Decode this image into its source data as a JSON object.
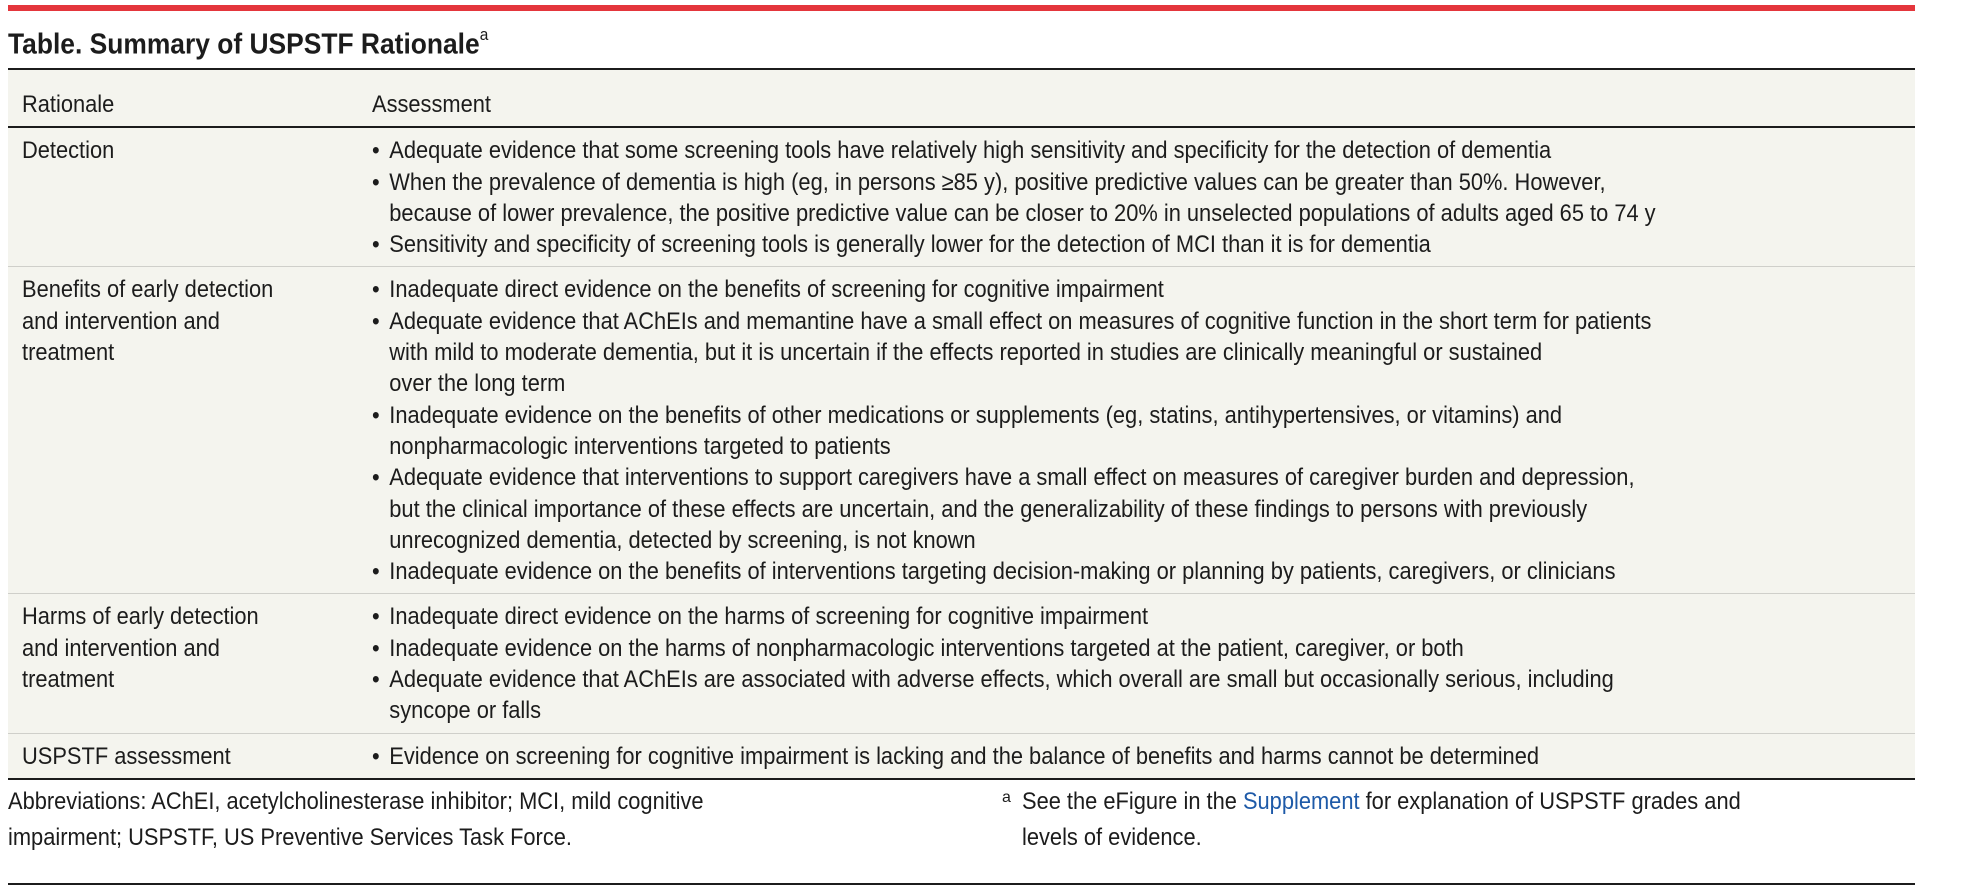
{
  "title": {
    "text": "Table. Summary of USPSTF Rationale",
    "footnote_marker": "a"
  },
  "colors": {
    "accent_bar": "#e4363c",
    "table_background": "#f4f4ee",
    "link": "#1e5aa8"
  },
  "table": {
    "headers": [
      "Rationale",
      "Assessment"
    ],
    "rows": [
      {
        "rationale": [
          "Detection"
        ],
        "bullets": [
          [
            "Adequate evidence that some screening tools have relatively high sensitivity and specificity for the detection of dementia"
          ],
          [
            "When the prevalence of dementia is high (eg, in persons ≥85 y), positive predictive values can be greater than 50%. However,",
            "because of lower prevalence, the positive predictive value can be closer to 20% in unselected populations of adults aged 65 to 74 y"
          ],
          [
            "Sensitivity and specificity of screening tools is generally lower for the detection of MCI than it is for dementia"
          ]
        ]
      },
      {
        "rationale": [
          "Benefits of early detection",
          "and intervention and",
          "treatment"
        ],
        "bullets": [
          [
            "Inadequate direct evidence on the benefits of screening for cognitive impairment"
          ],
          [
            "Adequate evidence that AChEIs and memantine have a small effect on measures of cognitive function in the short term for patients",
            "with mild to moderate dementia, but it is uncertain if the effects reported in studies are clinically meaningful or sustained",
            "over the long term"
          ],
          [
            "Inadequate evidence on the benefits of other medications or supplements (eg, statins, antihypertensives, or vitamins) and",
            "nonpharmacologic interventions targeted to patients"
          ],
          [
            "Adequate evidence that interventions to support caregivers have a small effect on measures of caregiver burden and depression,",
            "but the clinical importance of these effects are uncertain, and the generalizability of these findings to persons with previously",
            "unrecognized dementia, detected by screening, is not known"
          ],
          [
            "Inadequate evidence on the benefits of interventions targeting decision-making or planning by patients, caregivers, or clinicians"
          ]
        ]
      },
      {
        "rationale": [
          "Harms of early detection",
          "and intervention and",
          "treatment"
        ],
        "bullets": [
          [
            "Inadequate direct evidence on the harms of screening for cognitive impairment"
          ],
          [
            "Inadequate evidence on the harms of nonpharmacologic interventions targeted at the patient, caregiver, or both"
          ],
          [
            "Adequate evidence that AChEIs are associated with adverse effects, which overall are small but occasionally serious, including",
            "syncope or falls"
          ]
        ]
      },
      {
        "rationale": [
          "USPSTF assessment"
        ],
        "bullets": [
          [
            "Evidence on screening for cognitive impairment is lacking and the balance of benefits and harms cannot be determined"
          ]
        ]
      }
    ]
  },
  "notes": {
    "abbreviations": [
      "Abbreviations: AChEI, acetylcholinesterase inhibitor; MCI, mild cognitive",
      "impairment; USPSTF, US Preventive Services Task Force."
    ],
    "footnote_a": {
      "marker": "a",
      "before": "See the eFigure in the ",
      "link": "Supplement",
      "after": " for explanation of USPSTF grades and",
      "line2": "levels of evidence."
    }
  },
  "bullet_glyph": "•"
}
